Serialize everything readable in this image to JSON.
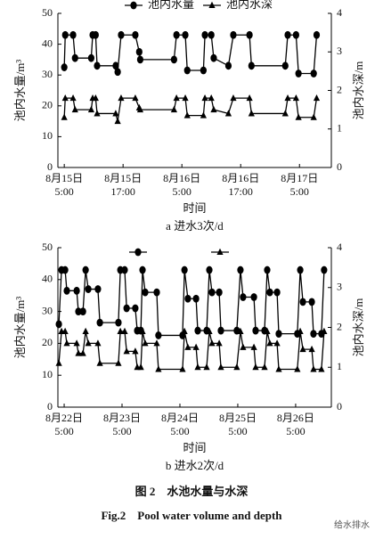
{
  "figure_caption_cn": "图 2　水池水量与水深",
  "figure_caption_en": "Fig.2　Pool water volume and depth",
  "watermark": "给水排水",
  "chart_data": [
    {
      "type": "line",
      "ylabel": "池内水量/m³",
      "y2label": "池内水深/m",
      "xlabel": "时间",
      "caption": "a 进水3次/d",
      "x": [
        0,
        0.2,
        1.8,
        2.2,
        5.5,
        5.8,
        6.4,
        6.7,
        10.5,
        10.9,
        11.6,
        14.5,
        15.3,
        15.5,
        22.4,
        22.9,
        24.7,
        25.1,
        28.4,
        28.7,
        30,
        30.5,
        33.5,
        34.5,
        37.8,
        38.2,
        45.1,
        45.6,
        47.3,
        47.8,
        50.9,
        51.5
      ],
      "xlim": [
        -1.3,
        54.5
      ],
      "xticks": [
        {
          "value": 0,
          "label": "8月15日\n5:00"
        },
        {
          "value": 12,
          "label": "8月15日\n17:00"
        },
        {
          "value": 24,
          "label": "8月16日\n5:00"
        },
        {
          "value": 36,
          "label": "8月16日\n17:00"
        },
        {
          "value": 48,
          "label": "8月17日\n5:00"
        }
      ],
      "ylim": [
        0,
        50
      ],
      "yticks": [
        0,
        10,
        20,
        30,
        40,
        50
      ],
      "y2lim": [
        0,
        4
      ],
      "y2ticks": [
        0,
        1,
        2,
        3,
        4
      ],
      "series": [
        {
          "name": "池内水量",
          "color": "#000000",
          "marker": "circle",
          "values": [
            32.5,
            43,
            43,
            35.5,
            35.5,
            43,
            43,
            33,
            33,
            31,
            43,
            43,
            37.5,
            35,
            35,
            43,
            43,
            31.5,
            31.5,
            43,
            43,
            35.5,
            33,
            43,
            43,
            33,
            33,
            43,
            43,
            30.5,
            30.5,
            43
          ]
        },
        {
          "name": "池内水深",
          "color": "#000000",
          "marker": "triangle",
          "axis": "y2",
          "values": [
            1.3,
            1.8,
            1.8,
            1.5,
            1.5,
            1.8,
            1.8,
            1.4,
            1.4,
            1.2,
            1.8,
            1.8,
            1.55,
            1.5,
            1.5,
            1.8,
            1.8,
            1.35,
            1.35,
            1.8,
            1.8,
            1.5,
            1.4,
            1.8,
            1.8,
            1.4,
            1.4,
            1.8,
            1.8,
            1.3,
            1.3,
            1.8
          ]
        }
      ]
    },
    {
      "type": "line",
      "ylabel": "池内水量/m³",
      "y2label": "池内水深/m",
      "xlabel": "时间",
      "caption": "b 进水2次/d",
      "x": [
        -2.2,
        -1.1,
        0.4,
        1.1,
        5.2,
        5.9,
        7.8,
        8.9,
        10,
        14,
        14.8,
        22.5,
        23.3,
        25.1,
        25.9,
        29.5,
        30.3,
        31.8,
        32.5,
        33.6,
        38.4,
        39.1,
        49.1,
        49.9,
        51.3,
        54.7,
        55.4,
        59.1,
        60.2,
        61.3,
        64.3,
        65,
        71.6,
        73.1,
        74.2,
        78.7,
        79.4,
        83.1,
        84.2,
        85.3,
        88.3,
        89,
        96.7,
        97.9,
        99,
        102.7,
        103.4,
        106.7,
        107.8
      ],
      "xlim": [
        -2.6,
        110.8
      ],
      "xticks": [
        {
          "value": 0,
          "label": "8月22日\n5:00"
        },
        {
          "value": 24,
          "label": "8月23日\n5:00"
        },
        {
          "value": 48,
          "label": "8月24日\n5:00"
        },
        {
          "value": 72,
          "label": "8月25日\n5:00"
        },
        {
          "value": 96,
          "label": "8月26日\n5:00"
        }
      ],
      "ylim": [
        0,
        50
      ],
      "yticks": [
        0,
        10,
        20,
        30,
        40,
        50
      ],
      "y2lim": [
        0,
        4
      ],
      "y2ticks": [
        0,
        1,
        2,
        3,
        4
      ],
      "series": [
        {
          "color": "#000000",
          "marker": "circle",
          "values": [
            26,
            43,
            43,
            36.5,
            36.5,
            30,
            30,
            43,
            37,
            37,
            26.5,
            26.5,
            43,
            43,
            31,
            31,
            24,
            24,
            43,
            36,
            36,
            22.5,
            22.5,
            43,
            34,
            34,
            24,
            24,
            43,
            36,
            36,
            24,
            24,
            43,
            34.5,
            34.5,
            24,
            24,
            43,
            36,
            36,
            23,
            23,
            43,
            33,
            33,
            23,
            23,
            43
          ]
        },
        {
          "color": "#000000",
          "marker": "triangle",
          "axis": "y2",
          "values": [
            1.1,
            1.9,
            1.9,
            1.6,
            1.6,
            1.35,
            1.35,
            1.9,
            1.6,
            1.6,
            1.1,
            1.1,
            1.9,
            1.9,
            1.4,
            1.4,
            1.0,
            1.0,
            1.9,
            1.6,
            1.6,
            0.95,
            0.95,
            1.9,
            1.5,
            1.5,
            1.0,
            1.0,
            1.9,
            1.6,
            1.6,
            1.0,
            1.0,
            1.9,
            1.5,
            1.5,
            1.0,
            1.0,
            1.9,
            1.6,
            1.6,
            0.95,
            0.95,
            1.9,
            1.45,
            1.45,
            0.95,
            0.95,
            1.9
          ]
        }
      ]
    }
  ]
}
